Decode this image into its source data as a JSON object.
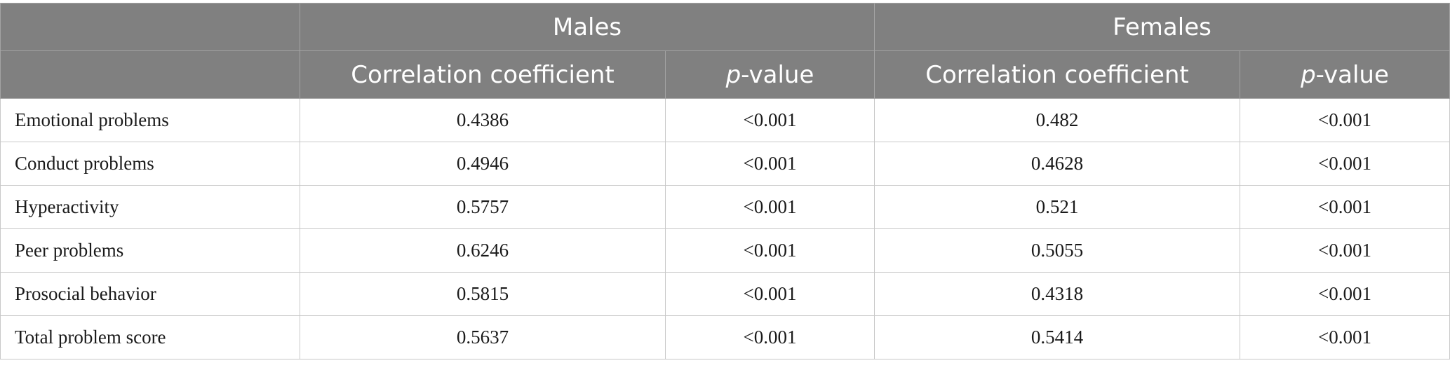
{
  "table": {
    "group_headers": [
      "Males",
      "Females"
    ],
    "sub_headers": {
      "coef": "Correlation coefficient",
      "p_italic": "p",
      "p_rest": "-value"
    },
    "rows": [
      {
        "label": "Emotional problems",
        "male_coef": "0.4386",
        "male_p": "<0.001",
        "female_coef": "0.482",
        "female_p": "<0.001"
      },
      {
        "label": "Conduct problems",
        "male_coef": "0.4946",
        "male_p": "<0.001",
        "female_coef": "0.4628",
        "female_p": "<0.001"
      },
      {
        "label": "Hyperactivity",
        "male_coef": "0.5757",
        "male_p": "<0.001",
        "female_coef": "0.521",
        "female_p": "<0.001"
      },
      {
        "label": "Peer problems",
        "male_coef": "0.6246",
        "male_p": "<0.001",
        "female_coef": "0.5055",
        "female_p": "<0.001"
      },
      {
        "label": "Prosocial behavior",
        "male_coef": "0.5815",
        "male_p": "<0.001",
        "female_coef": "0.4318",
        "female_p": "<0.001"
      },
      {
        "label": "Total problem score",
        "male_coef": "0.5637",
        "male_p": "<0.001",
        "female_coef": "0.5414",
        "female_p": "<0.001"
      }
    ]
  }
}
